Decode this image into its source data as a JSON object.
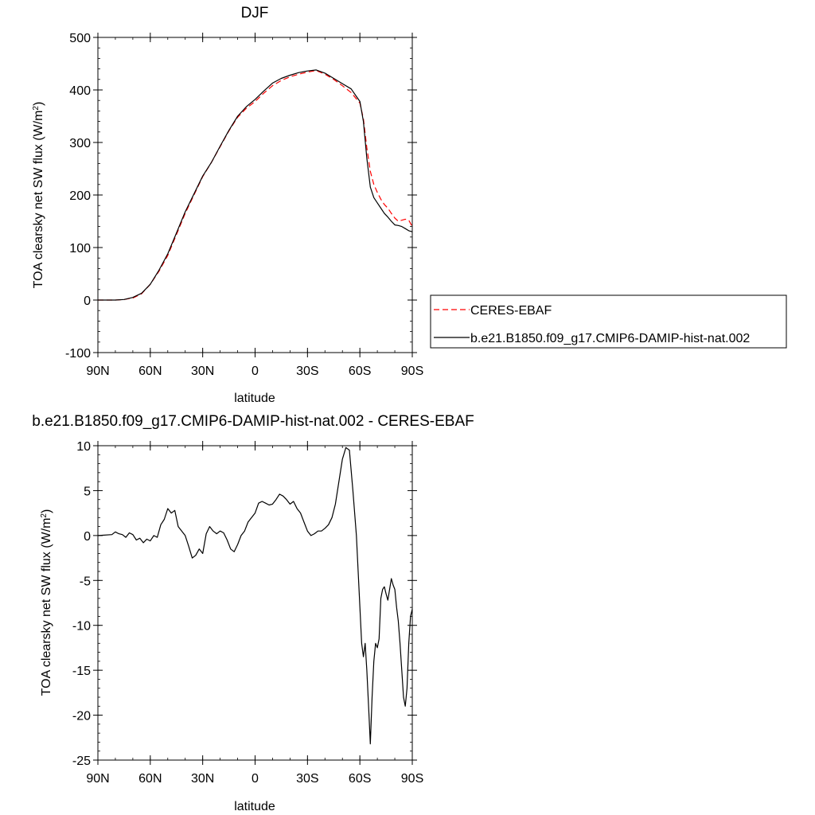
{
  "chart_data": [
    {
      "type": "line",
      "title": "DJF",
      "ylabel": "TOA clearsky net SW flux (W/m",
      "ylabel_sup": "2",
      "ylabel_end": ")",
      "xlabel": "latitude",
      "xlim": [
        -90,
        90
      ],
      "ylim": [
        -100,
        500
      ],
      "x_ticks": [
        -90,
        -60,
        -30,
        0,
        30,
        60,
        90
      ],
      "x_tick_labels": [
        "90N",
        "60N",
        "30N",
        "0",
        "30S",
        "60S",
        "90S"
      ],
      "y_ticks": [
        -100,
        0,
        100,
        200,
        300,
        400,
        500
      ],
      "y_tick_labels": [
        "-100",
        "0",
        "100",
        "200",
        "300",
        "400",
        "500"
      ],
      "legend_placement": "right, outside",
      "series": [
        {
          "name": "CERES-EBAF",
          "color": "#ff0000",
          "style": "dashed",
          "x": [
            -90,
            -80,
            -75,
            -70,
            -65,
            -60,
            -55,
            -50,
            -45,
            -40,
            -35,
            -30,
            -25,
            -20,
            -15,
            -10,
            -5,
            0,
            5,
            10,
            15,
            20,
            25,
            30,
            35,
            40,
            45,
            50,
            55,
            60,
            62,
            64,
            66,
            68,
            70,
            72,
            74,
            76,
            78,
            80,
            82,
            84,
            86,
            88,
            90
          ],
          "y": [
            0,
            0,
            1,
            4,
            12,
            30,
            55,
            85,
            125,
            165,
            200,
            235,
            262,
            292,
            322,
            348,
            365,
            378,
            394,
            408,
            418,
            425,
            430,
            434,
            437,
            430,
            420,
            408,
            395,
            375,
            345,
            290,
            245,
            220,
            205,
            192,
            182,
            175,
            165,
            156,
            150,
            152,
            154,
            152,
            140
          ]
        },
        {
          "name": "b.e21.B1850.f09_g17.CMIP6-DAMIP-hist-nat.002",
          "color": "#000000",
          "style": "solid",
          "x": [
            -90,
            -80,
            -75,
            -70,
            -65,
            -60,
            -55,
            -50,
            -45,
            -40,
            -35,
            -30,
            -25,
            -20,
            -15,
            -10,
            -5,
            0,
            5,
            10,
            15,
            20,
            25,
            30,
            35,
            40,
            45,
            50,
            55,
            60,
            62,
            64,
            66,
            68,
            70,
            72,
            74,
            76,
            78,
            80,
            82,
            84,
            86,
            88,
            90
          ],
          "y": [
            0,
            0,
            1,
            5,
            13,
            30,
            57,
            88,
            128,
            168,
            202,
            236,
            262,
            293,
            323,
            350,
            368,
            382,
            398,
            413,
            422,
            428,
            433,
            436,
            438,
            432,
            422,
            412,
            402,
            378,
            340,
            270,
            215,
            195,
            185,
            175,
            165,
            158,
            150,
            143,
            142,
            140,
            136,
            132,
            130
          ]
        }
      ]
    },
    {
      "type": "line",
      "title": "b.e21.B1850.f09_g17.CMIP6-DAMIP-hist-nat.002 - CERES-EBAF",
      "ylabel": "TOA clearsky net SW flux (W/m",
      "ylabel_sup": "2",
      "ylabel_end": ")",
      "xlabel": "latitude",
      "xlim": [
        -90,
        90
      ],
      "ylim": [
        -25,
        10
      ],
      "x_ticks": [
        -90,
        -60,
        -30,
        0,
        30,
        60,
        90
      ],
      "x_tick_labels": [
        "90N",
        "60N",
        "30N",
        "0",
        "30S",
        "60S",
        "90S"
      ],
      "y_ticks": [
        -25,
        -20,
        -15,
        -10,
        -5,
        0,
        5,
        10
      ],
      "y_tick_labels": [
        "-25",
        "-20",
        "-15",
        "-10",
        "-5",
        "0",
        "5",
        "10"
      ],
      "series": [
        {
          "name": "",
          "color": "#000000",
          "style": "solid",
          "x": [
            -90,
            -82,
            -80,
            -78,
            -76,
            -74,
            -72,
            -70,
            -68,
            -66,
            -64,
            -62,
            -60,
            -58,
            -56,
            -54,
            -52,
            -50,
            -48,
            -46,
            -44,
            -42,
            -40,
            -38,
            -36,
            -34,
            -32,
            -30,
            -28,
            -26,
            -24,
            -22,
            -20,
            -18,
            -16,
            -14,
            -12,
            -10,
            -8,
            -6,
            -4,
            -2,
            0,
            2,
            4,
            6,
            8,
            10,
            12,
            14,
            16,
            18,
            20,
            22,
            24,
            26,
            28,
            30,
            32,
            34,
            36,
            38,
            40,
            42,
            44,
            46,
            48,
            50,
            52,
            54,
            56,
            58,
            59,
            60,
            61,
            62,
            63,
            64,
            65,
            66,
            67,
            68,
            69,
            70,
            71,
            72,
            73,
            74,
            75,
            76,
            77,
            78,
            79,
            80,
            81,
            82,
            83,
            84,
            85,
            86,
            87,
            88,
            89,
            90
          ],
          "y": [
            0,
            0.1,
            0.4,
            0.2,
            0.1,
            -0.2,
            0.3,
            0.1,
            -0.5,
            -0.3,
            -0.8,
            -0.4,
            -0.6,
            0,
            -0.2,
            1.2,
            1.8,
            3,
            2.5,
            2.8,
            1,
            0.5,
            0,
            -1.2,
            -2.5,
            -2.2,
            -1.5,
            -2,
            0.2,
            1,
            0.5,
            0.2,
            0.5,
            0.3,
            -0.5,
            -1.5,
            -1.8,
            -1,
            0,
            0.5,
            1.5,
            2,
            2.5,
            3.6,
            3.8,
            3.6,
            3.4,
            3.5,
            4,
            4.6,
            4.4,
            4,
            3.5,
            3.8,
            3,
            2.5,
            1.5,
            0.5,
            0,
            0.2,
            0.5,
            0.5,
            0.8,
            1.2,
            2,
            3.5,
            6,
            8.5,
            9.8,
            9.5,
            5,
            0,
            -4,
            -8,
            -12,
            -13.5,
            -12,
            -15,
            -19,
            -23.2,
            -18,
            -14,
            -12,
            -12.5,
            -11.5,
            -7,
            -6,
            -5.7,
            -6.5,
            -7.2,
            -6,
            -4.8,
            -5.5,
            -6,
            -8,
            -9.5,
            -12,
            -15,
            -18,
            -19,
            -17,
            -12,
            -9,
            -8.2
          ]
        }
      ]
    }
  ]
}
